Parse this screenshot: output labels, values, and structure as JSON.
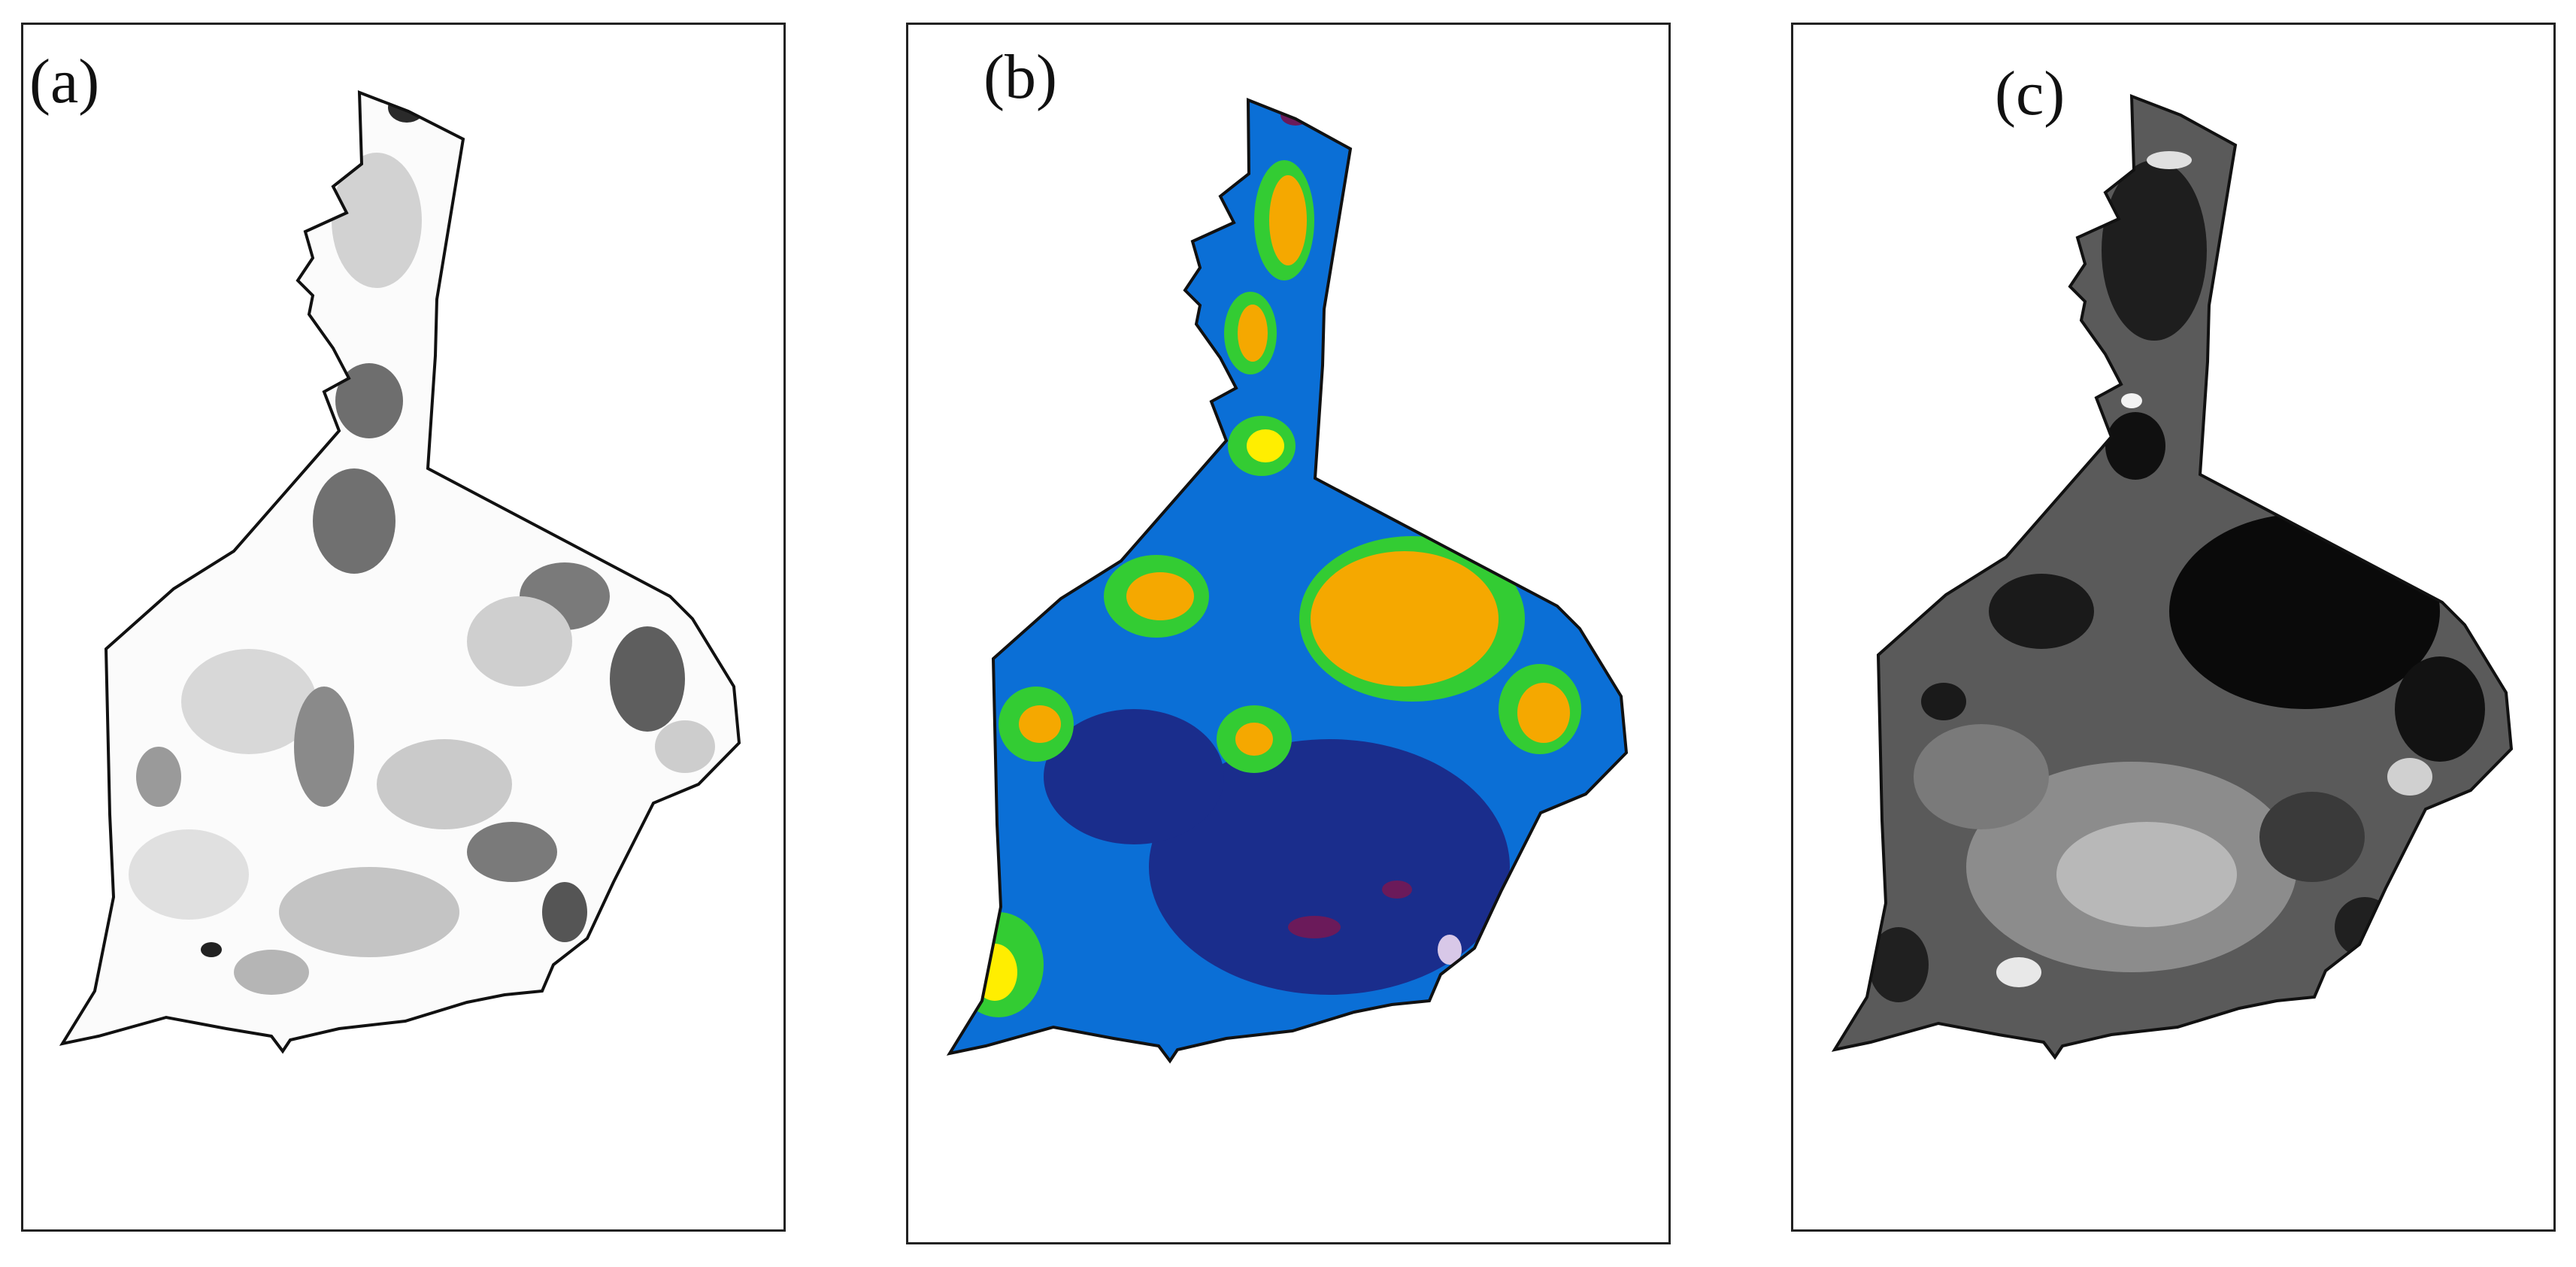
{
  "panels": [
    {
      "id": "a",
      "label": "(a)",
      "style": "grayscale-light",
      "colors": [
        "#ffffff",
        "#d9d9d9",
        "#a8a8a8",
        "#6e6e6e",
        "#3a3a3a"
      ]
    },
    {
      "id": "b",
      "label": "(b)",
      "style": "classified-color",
      "colors": [
        "#1a2d8c",
        "#0b6fd6",
        "#33cc33",
        "#ffee00",
        "#f5a800",
        "#6b1a5a"
      ]
    },
    {
      "id": "c",
      "label": "(c)",
      "style": "grayscale-dark",
      "colors": [
        "#050505",
        "#3c3c3c",
        "#808080",
        "#b5b5b5",
        "#e6e6e6"
      ]
    }
  ]
}
